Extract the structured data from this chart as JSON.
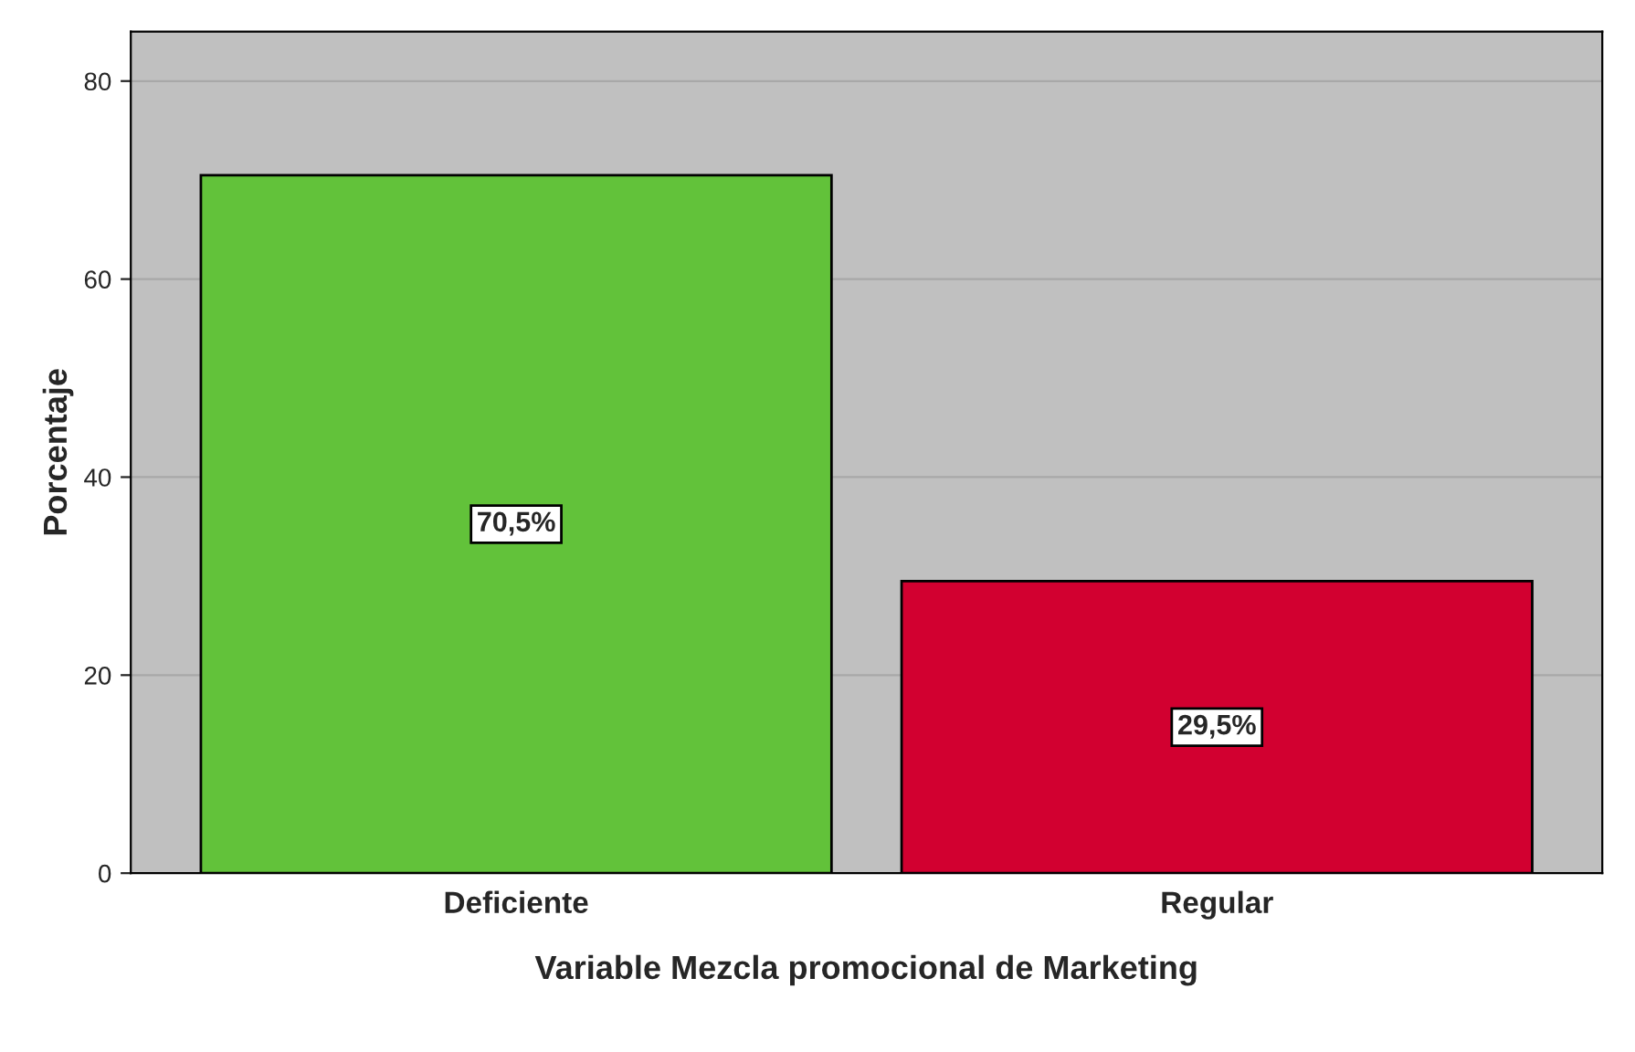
{
  "chart_data": {
    "type": "bar",
    "xlabel": "Variable Mezcla promocional de Marketing",
    "ylabel": "Porcentaje",
    "categories": [
      "Deficiente",
      "Regular"
    ],
    "values": [
      70.5,
      29.5
    ],
    "colors": [
      "#62c23a",
      "#d20030"
    ],
    "value_labels": [
      "70,5%",
      "29,5%"
    ],
    "ylim": [
      0,
      85
    ],
    "yticks": [
      0,
      20,
      40,
      60,
      80
    ],
    "grid": "y",
    "legend": false
  }
}
